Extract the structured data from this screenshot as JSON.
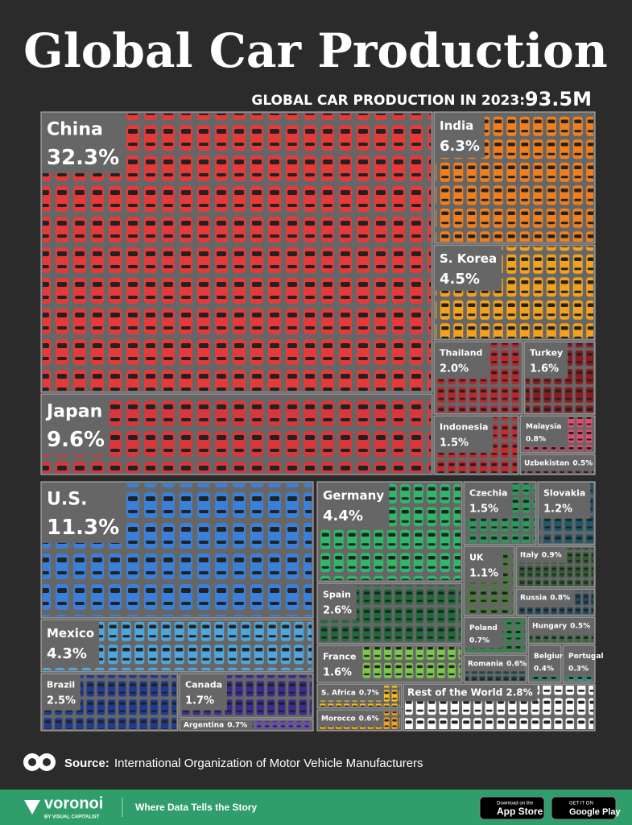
{
  "chart_data": {
    "type": "treemap",
    "title": "Global Car Production",
    "subtitle": "GLOBAL CAR PRODUCTION IN 2023:",
    "total": "93.5M",
    "categories": [
      "China",
      "Japan",
      "India",
      "S. Korea",
      "Thailand",
      "Turkey",
      "Indonesia",
      "Malaysia",
      "Uzbekistan",
      "U.S.",
      "Mexico",
      "Brazil",
      "Canada",
      "Argentina",
      "Germany",
      "Spain",
      "France",
      "S. Africa",
      "Morocco",
      "Rest of the World",
      "Czechia",
      "Slovakia",
      "UK",
      "Italy",
      "Russia",
      "Poland",
      "Hungary",
      "Romania",
      "Belgium",
      "Portugal"
    ],
    "values": [
      32.3,
      9.6,
      6.3,
      4.5,
      2.0,
      1.6,
      1.5,
      0.8,
      0.5,
      11.3,
      4.3,
      2.5,
      1.7,
      0.7,
      4.4,
      2.6,
      1.6,
      0.7,
      0.6,
      2.8,
      1.5,
      1.2,
      1.1,
      0.9,
      0.8,
      0.7,
      0.5,
      0.6,
      0.4,
      0.3
    ],
    "value_labels": [
      "32.3%",
      "9.6%",
      "6.3%",
      "4.5%",
      "2.0%",
      "1.6%",
      "1.5%",
      "0.8%",
      "0.5%",
      "11.3%",
      "4.3%",
      "2.5%",
      "1.7%",
      "0.7%",
      "4.4%",
      "2.6%",
      "1.6%",
      "0.7%",
      "0.6%",
      "2.8%",
      "1.5%",
      "1.2%",
      "1.1%",
      "0.9%",
      "0.8%",
      "0.7%",
      "0.5%",
      "0.6%",
      "0.4%",
      "0.3%"
    ],
    "colors": [
      "#e53a3a",
      "#d8373b",
      "#f0801f",
      "#f3a21e",
      "#b8282e",
      "#8e1b20",
      "#c42a30",
      "#e24b6c",
      "#b0304a",
      "#3a7fd8",
      "#4ea6dc",
      "#1f3b92",
      "#3a2c90",
      "#6a4ab4",
      "#2fb86a",
      "#1f6b3a",
      "#7cc84a",
      "#f4bd1e",
      "#f3a21e",
      "#ffffff",
      "#2a9a5a",
      "#1e5a6a",
      "#4a7a3a",
      "#2f5a2f",
      "#1f4a5a",
      "#2a8a4a",
      "#3a6a3a",
      "#1e4a4a",
      "#2a8a6a",
      "#2aa08a"
    ]
  },
  "footer": {
    "source_label": "Source:",
    "source": "International Organization of Motor Vehicle Manufacturers",
    "brand": "voronoi",
    "brand_sub": "BY VISUAL CAPITALIST",
    "tagline": "Where Data Tells the Story",
    "appstore_small": "Download on the",
    "appstore": "App Store",
    "googleplay_small": "GET IT ON",
    "googleplay": "Google Play"
  }
}
